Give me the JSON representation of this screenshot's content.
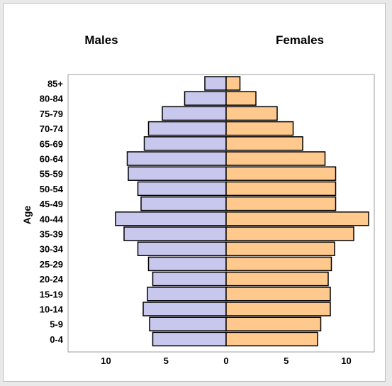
{
  "chart_data": {
    "type": "bar",
    "subtype": "population-pyramid",
    "ylabel": "Age",
    "left_header": "Males",
    "right_header": "Females",
    "categories": [
      "85+",
      "80-84",
      "75-79",
      "70-74",
      "65-69",
      "60-64",
      "55-59",
      "50-54",
      "45-49",
      "40-44",
      "35-39",
      "30-34",
      "25-29",
      "20-24",
      "15-19",
      "10-14",
      "5-9",
      "0-4"
    ],
    "series": [
      {
        "name": "Males",
        "color": "#c8c8ee",
        "values": [
          2.0,
          3.9,
          6.0,
          7.3,
          7.7,
          9.3,
          9.2,
          8.3,
          8.0,
          10.4,
          9.6,
          8.3,
          7.3,
          6.9,
          7.4,
          7.8,
          7.2,
          6.9
        ]
      },
      {
        "name": "Females",
        "color": "#ffc88c",
        "values": [
          1.3,
          2.8,
          4.8,
          6.3,
          7.2,
          9.3,
          10.3,
          10.3,
          10.3,
          13.4,
          12.0,
          10.2,
          9.9,
          9.6,
          9.8,
          9.8,
          8.9,
          8.6
        ]
      }
    ],
    "x_ticks": [
      "10",
      "5",
      "0",
      "5",
      "10"
    ],
    "grid": false
  }
}
